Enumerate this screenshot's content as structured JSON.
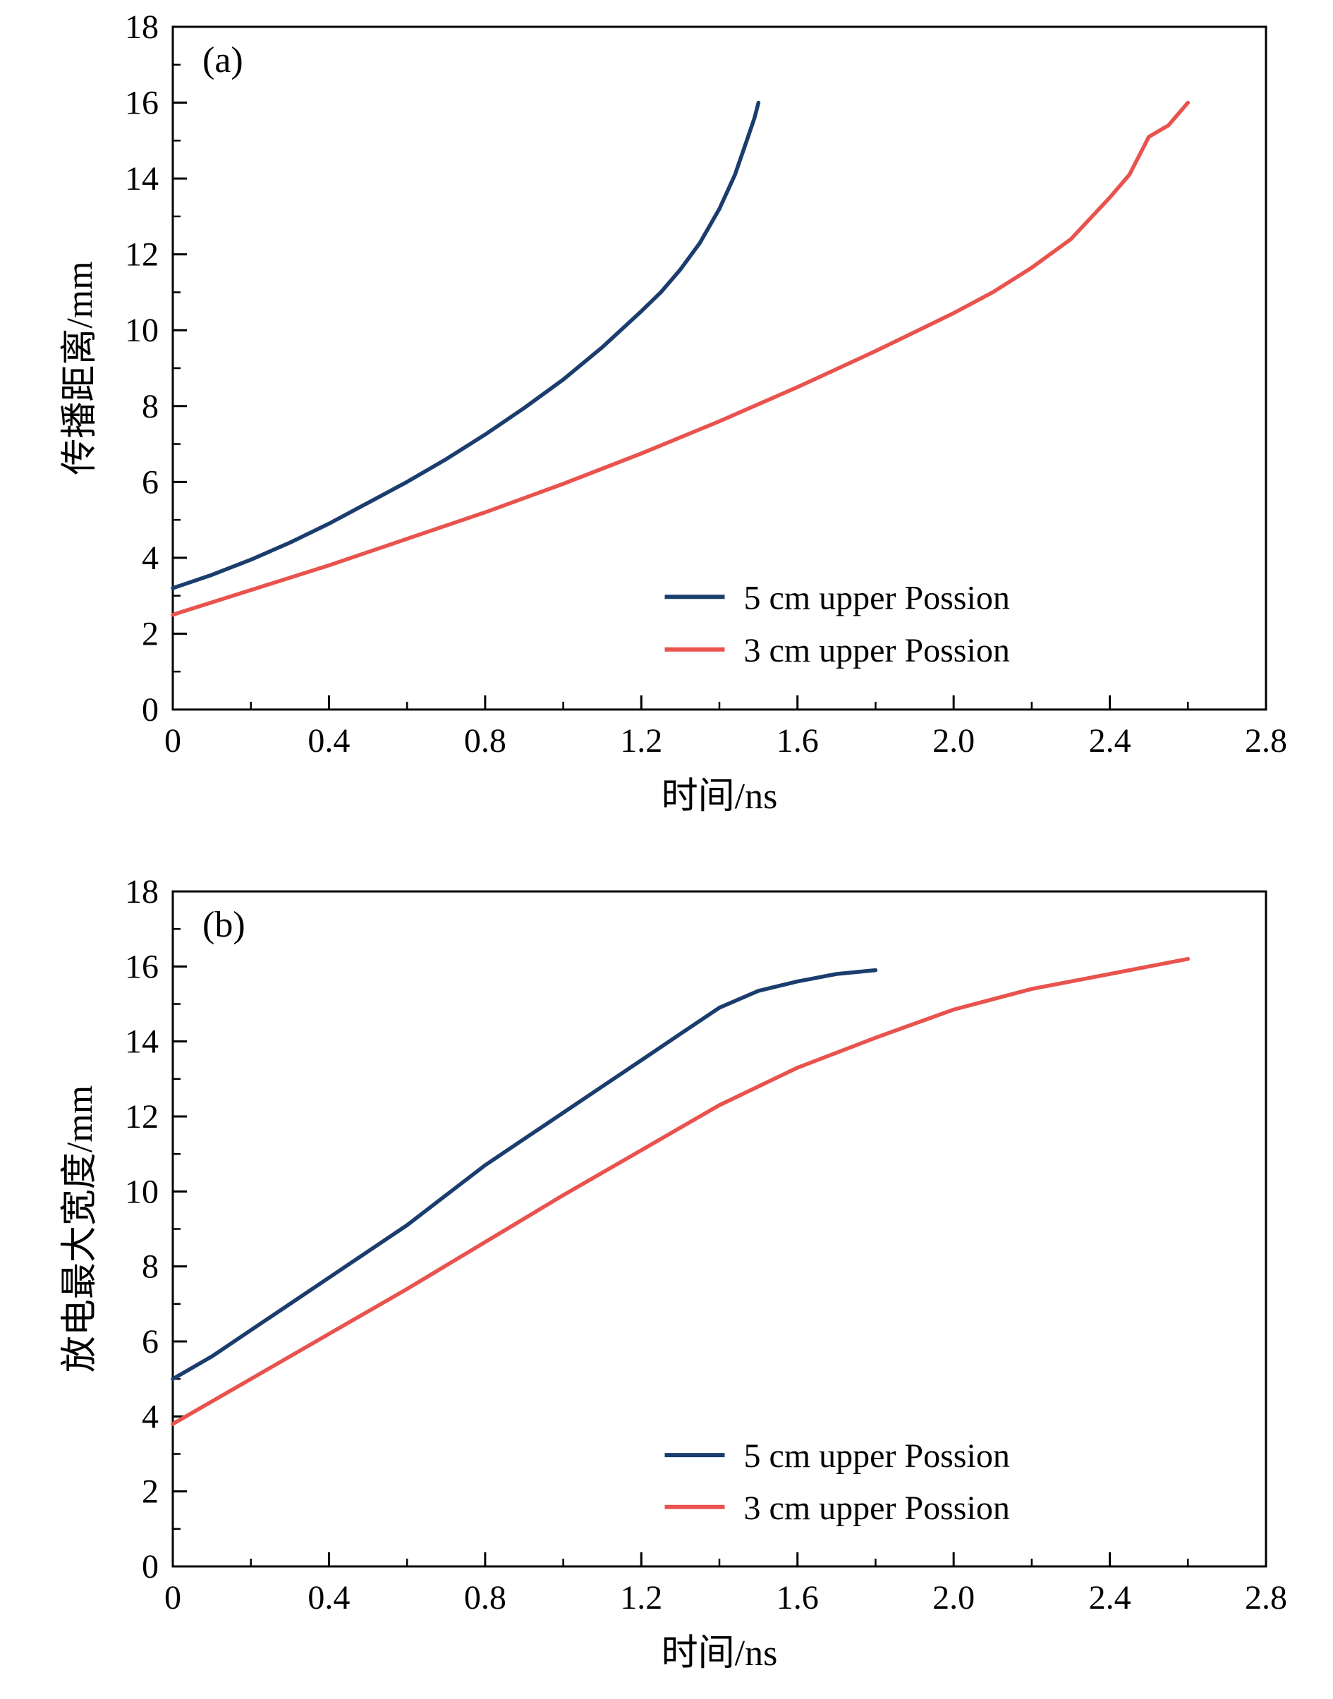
{
  "page": {
    "background": "#ffffff",
    "text_color": "#000000"
  },
  "chart_data": [
    {
      "type": "line",
      "panel_label": "(a)",
      "xlabel": "时间/ns",
      "ylabel": "传播距离/mm",
      "xlim": [
        0,
        2.8
      ],
      "ylim": [
        0,
        18
      ],
      "xticks": [
        "0",
        "0.4",
        "0.8",
        "1.2",
        "1.6",
        "2.0",
        "2.4",
        "2.8"
      ],
      "yticks": [
        "0",
        "2",
        "4",
        "6",
        "8",
        "10",
        "12",
        "14",
        "16",
        "18"
      ],
      "x_minor_step": 0.2,
      "y_minor_step": 1,
      "grid": false,
      "legend_position": "lower right",
      "series": [
        {
          "name": "5 cm upper Possion",
          "color": "#1b3d6e",
          "x": [
            0,
            0.1,
            0.2,
            0.3,
            0.4,
            0.5,
            0.6,
            0.7,
            0.8,
            0.9,
            1.0,
            1.1,
            1.2,
            1.25,
            1.3,
            1.35,
            1.4,
            1.44,
            1.47,
            1.49,
            1.5
          ],
          "y": [
            3.2,
            3.55,
            3.95,
            4.4,
            4.9,
            5.45,
            6.0,
            6.6,
            7.25,
            7.95,
            8.7,
            9.55,
            10.5,
            11.0,
            11.6,
            12.3,
            13.2,
            14.1,
            15.0,
            15.6,
            16.0
          ]
        },
        {
          "name": "3 cm upper Possion",
          "color": "#e9534e",
          "x": [
            0,
            0.2,
            0.4,
            0.6,
            0.8,
            1.0,
            1.2,
            1.4,
            1.6,
            1.8,
            2.0,
            2.1,
            2.2,
            2.3,
            2.4,
            2.45,
            2.5,
            2.55,
            2.6
          ],
          "y": [
            2.5,
            3.15,
            3.8,
            4.5,
            5.2,
            5.95,
            6.75,
            7.6,
            8.5,
            9.45,
            10.45,
            11.0,
            11.65,
            12.4,
            13.5,
            14.1,
            15.1,
            15.4,
            16.0
          ]
        }
      ]
    },
    {
      "type": "line",
      "panel_label": "(b)",
      "xlabel": "时间/ns",
      "ylabel": "放电最大宽度/mm",
      "xlim": [
        0,
        2.8
      ],
      "ylim": [
        0,
        18
      ],
      "xticks": [
        "0",
        "0.4",
        "0.8",
        "1.2",
        "1.6",
        "2.0",
        "2.4",
        "2.8"
      ],
      "yticks": [
        "0",
        "2",
        "4",
        "6",
        "8",
        "10",
        "12",
        "14",
        "16",
        "18"
      ],
      "x_minor_step": 0.2,
      "y_minor_step": 1,
      "grid": false,
      "legend_position": "lower right",
      "series": [
        {
          "name": "5 cm upper Possion",
          "color": "#1b3d6e",
          "x": [
            0,
            0.1,
            0.2,
            0.3,
            0.4,
            0.5,
            0.6,
            0.7,
            0.8,
            0.9,
            1.0,
            1.1,
            1.2,
            1.3,
            1.4,
            1.5,
            1.6,
            1.7,
            1.8
          ],
          "y": [
            5.0,
            5.6,
            6.3,
            7.0,
            7.7,
            8.4,
            9.1,
            9.9,
            10.7,
            11.4,
            12.1,
            12.8,
            13.5,
            14.2,
            14.9,
            15.35,
            15.6,
            15.8,
            15.9
          ]
        },
        {
          "name": "3 cm upper Possion",
          "color": "#e9534e",
          "x": [
            0,
            0.2,
            0.4,
            0.6,
            0.8,
            1.0,
            1.2,
            1.4,
            1.6,
            1.8,
            2.0,
            2.2,
            2.4,
            2.5,
            2.6
          ],
          "y": [
            3.8,
            5.0,
            6.2,
            7.4,
            8.65,
            9.9,
            11.1,
            12.3,
            13.3,
            14.1,
            14.85,
            15.4,
            15.8,
            16.0,
            16.2
          ]
        }
      ]
    }
  ]
}
